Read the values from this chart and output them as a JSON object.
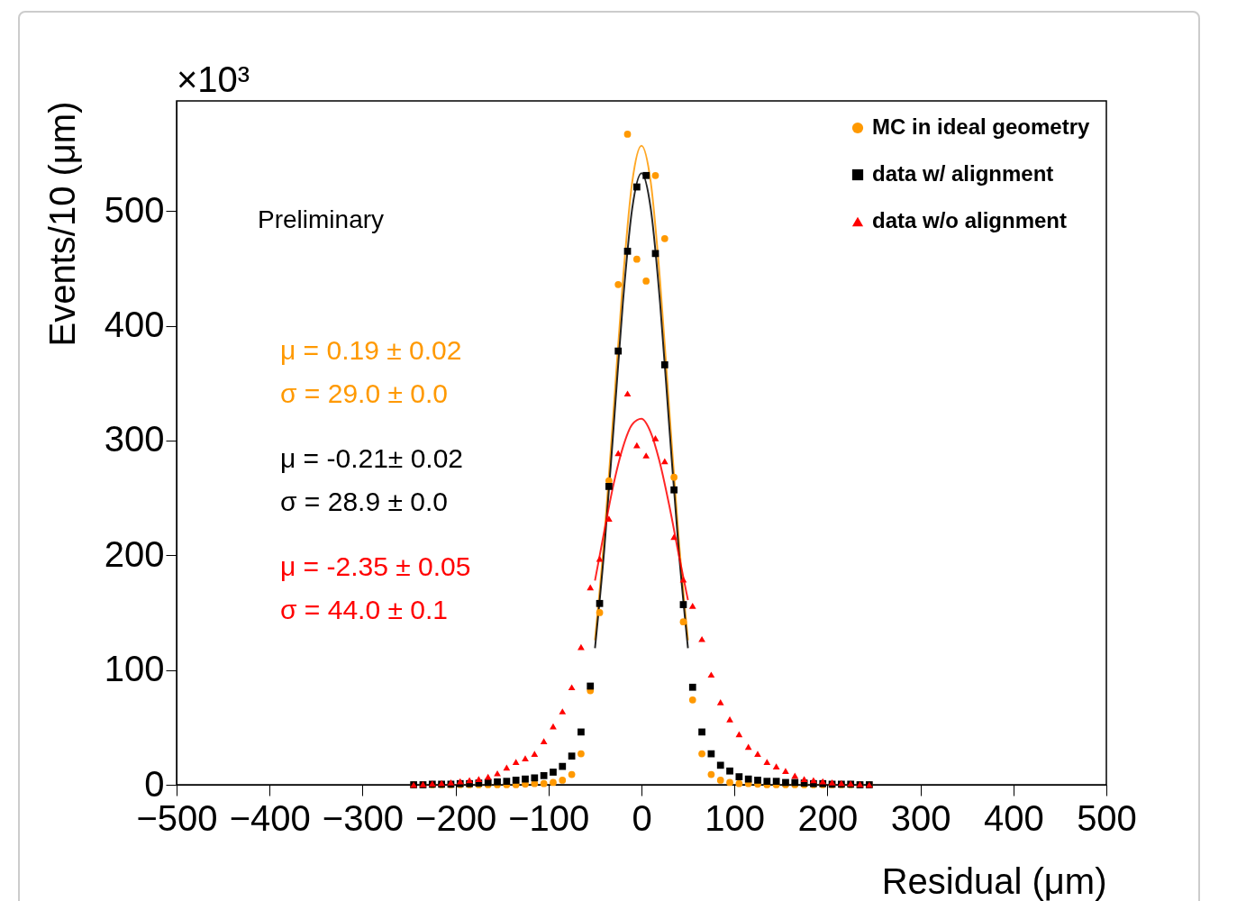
{
  "chart_data": {
    "type": "scatter",
    "xlabel": "Residual (μm)",
    "ylabel": "Events/10 (μm)",
    "annotations": [
      "×10³",
      "Preliminary",
      "μ = 0.19 ± 0.02",
      "σ = 29.0 ± 0.0",
      "μ = -0.21± 0.02",
      "σ = 28.9 ± 0.0",
      "μ = -2.35 ± 0.05",
      "σ = 44.0 ± 0.1"
    ],
    "xlim": [
      -500,
      500
    ],
    "xticks": [
      -500,
      -400,
      -300,
      -200,
      -100,
      0,
      100,
      200,
      300,
      400,
      500
    ],
    "ylim": [
      0,
      596
    ],
    "yticks": [
      0,
      100,
      200,
      300,
      400,
      500
    ],
    "grid": false,
    "legend": "top right",
    "x": [
      -245,
      -235,
      -225,
      -215,
      -205,
      -195,
      -185,
      -175,
      -165,
      -155,
      -145,
      -135,
      -125,
      -115,
      -105,
      -95,
      -85,
      -75,
      -65,
      -55,
      -45,
      -35,
      -25,
      -15,
      -5,
      5,
      15,
      25,
      35,
      45,
      55,
      65,
      75,
      85,
      95,
      105,
      115,
      125,
      135,
      145,
      155,
      165,
      175,
      185,
      195,
      205,
      215,
      225,
      235,
      245
    ],
    "series": [
      {
        "name": "MC in ideal geometry",
        "color": "#ff9900",
        "marker": "circle",
        "values": [
          0,
          0,
          0,
          0,
          0,
          0,
          0,
          0,
          0,
          0,
          0,
          0,
          0.5,
          1,
          1,
          2,
          4,
          9,
          27,
          82,
          150,
          265,
          436,
          567,
          458,
          439,
          531,
          476,
          268,
          142,
          74,
          27,
          9,
          4,
          2,
          1,
          1,
          0.5,
          0,
          0,
          0,
          0,
          0,
          0,
          0,
          0,
          0,
          0,
          0,
          0
        ]
      },
      {
        "name": "data w/ alignment",
        "color": "#000000",
        "marker": "square",
        "values": [
          0,
          0,
          0.5,
          0.5,
          0.5,
          1,
          1,
          1.5,
          2,
          2.5,
          3,
          4,
          5,
          6,
          8,
          11,
          16,
          25,
          46,
          86,
          158,
          260,
          378,
          465,
          521,
          531,
          463,
          366,
          257,
          157,
          85,
          46,
          27,
          17,
          12,
          7,
          5,
          4,
          3,
          3,
          2,
          2,
          1.5,
          1,
          1,
          0.5,
          0.5,
          0.5,
          0,
          0
        ]
      },
      {
        "name": "data w/o alignment",
        "color": "#ff0000",
        "marker": "triangle",
        "values": [
          0,
          0.5,
          1,
          1.5,
          2,
          3,
          4,
          5,
          7,
          10,
          15,
          20,
          23,
          27,
          38,
          51,
          64,
          85,
          120,
          172,
          197,
          232,
          289,
          341,
          296,
          287,
          302,
          282,
          216,
          179,
          156,
          127,
          96,
          72,
          57,
          44,
          33,
          27,
          20,
          16,
          12,
          8,
          5,
          4,
          3,
          2,
          1.5,
          1,
          0.5,
          0
        ]
      },
      {
        "type": "line",
        "color": "#ff9900",
        "x": [
          -50,
          -40,
          -30,
          -20,
          -10,
          0,
          10,
          20,
          30,
          40,
          50
        ],
        "values": [
          126,
          215,
          326,
          439,
          525,
          557,
          525,
          439,
          326,
          215,
          126
        ]
      },
      {
        "type": "line",
        "color": "#000000",
        "x": [
          -50,
          -40,
          -30,
          -20,
          -10,
          0,
          10,
          20,
          30,
          40,
          50
        ],
        "values": [
          119,
          205,
          311,
          420,
          502,
          533,
          502,
          420,
          311,
          205,
          119
        ]
      },
      {
        "type": "line",
        "color": "#ff0000",
        "x": [
          -50,
          -40,
          -30,
          -20,
          -10,
          0,
          10,
          20,
          30,
          40,
          50
        ],
        "values": [
          178,
          221,
          262,
          294,
          314,
          319,
          307,
          280,
          243,
          201,
          161
        ]
      }
    ]
  }
}
